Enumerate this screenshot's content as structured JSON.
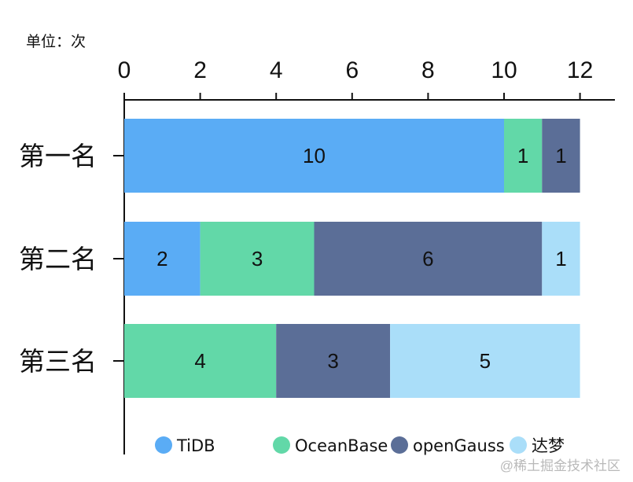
{
  "unit_label": "单位：次",
  "watermark": "@稀土掘金技术社区",
  "colors": {
    "TiDB": "#5aacf5",
    "OceanBase": "#62d8a8",
    "openGauss": "#5b6e97",
    "达梦": "#aadef9"
  },
  "chart_data": {
    "type": "bar",
    "orientation": "horizontal",
    "stacked": true,
    "categories": [
      "第一名",
      "第二名",
      "第三名"
    ],
    "series": [
      {
        "name": "TiDB",
        "values": [
          10,
          2,
          0
        ]
      },
      {
        "name": "OceanBase",
        "values": [
          1,
          3,
          4
        ]
      },
      {
        "name": "openGauss",
        "values": [
          1,
          6,
          3
        ]
      },
      {
        "name": "达梦",
        "values": [
          0,
          1,
          5
        ]
      }
    ],
    "xaxis": {
      "position": "top",
      "range": [
        0,
        13
      ],
      "ticks": [
        0,
        2,
        4,
        6,
        8,
        10,
        12
      ]
    },
    "grid": false,
    "legend": {
      "position": "bottom",
      "entries": [
        "TiDB",
        "OceanBase",
        "openGauss",
        "达梦"
      ]
    }
  }
}
